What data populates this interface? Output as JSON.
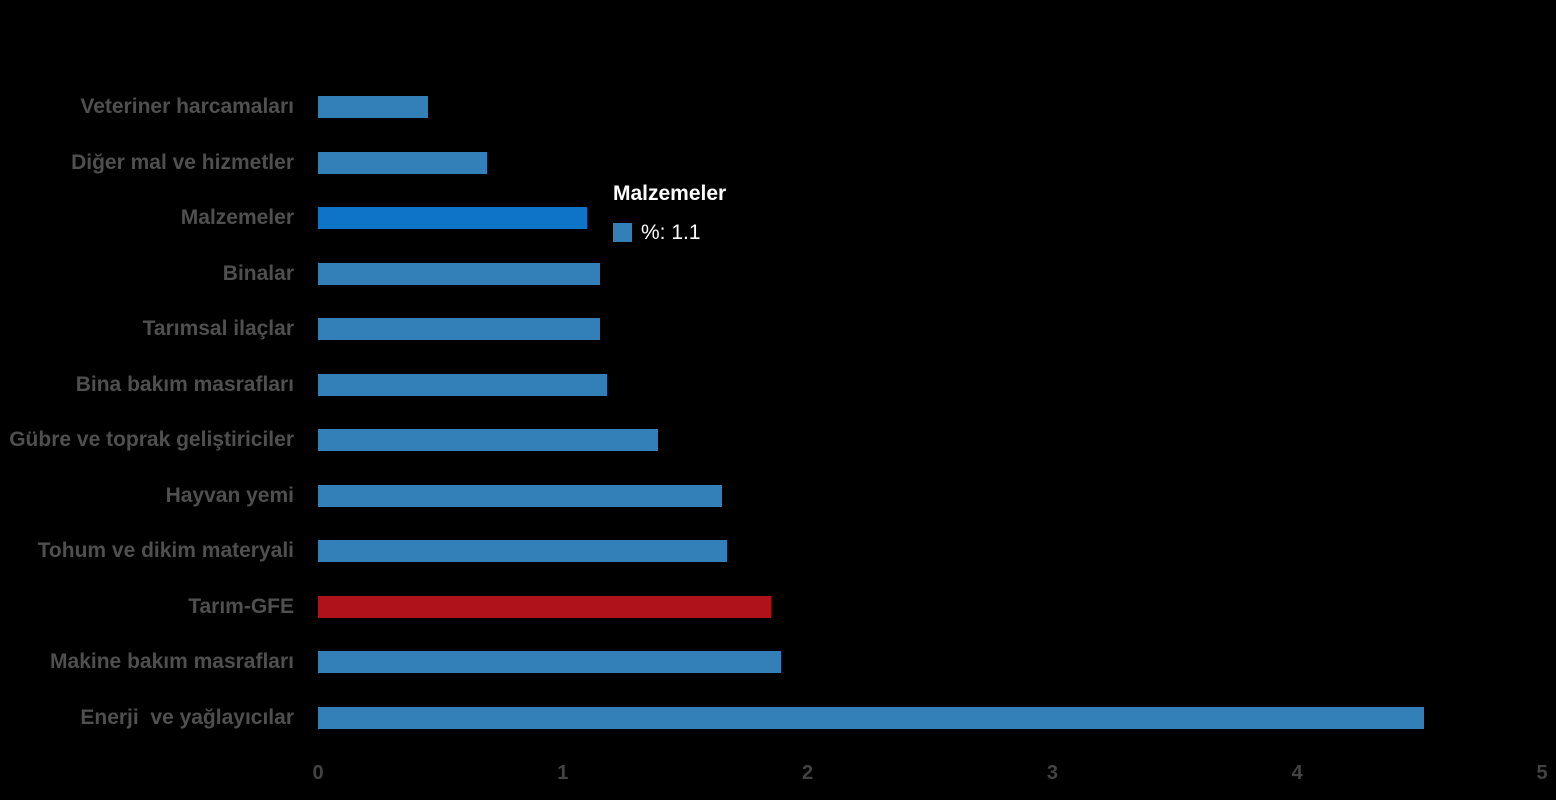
{
  "chart_data": {
    "type": "bar",
    "orientation": "horizontal",
    "title": "",
    "xlabel": "",
    "ylabel": "",
    "unit": "%",
    "xlim": [
      0,
      5
    ],
    "x_ticks": [
      "0",
      "1",
      "2",
      "3",
      "4",
      "5"
    ],
    "grid": false,
    "legend": false,
    "categories": [
      "Veteriner harcamaları",
      "Diğer mal ve hizmetler",
      "Malzemeler",
      "Binalar",
      "Tarımsal ilaçlar",
      "Bina bakım masrafları",
      "Gübre ve toprak geliştiriciler",
      "Hayvan yemi",
      "Tohum ve dikim materyali",
      "Tarım-GFE",
      "Makine bakım masrafları",
      "Enerji  ve yağlayıcılar"
    ],
    "values": [
      0.45,
      0.69,
      1.1,
      1.15,
      1.15,
      1.18,
      1.39,
      1.65,
      1.67,
      1.85,
      1.89,
      4.52
    ],
    "bar_states": [
      "default",
      "default",
      "hover",
      "default",
      "default",
      "default",
      "default",
      "default",
      "default",
      "emphasis",
      "default",
      "default"
    ],
    "hovered_category": "Malzemeler",
    "emphasis_category": "Tarım-GFE"
  },
  "tooltip": {
    "title": "Malzemeler",
    "text": "%: 1.1"
  },
  "colors": {
    "background": "#000000",
    "bar_default": "#3380B9",
    "bar_hover": "#0E74C8",
    "bar_emphasis": "#AF1319",
    "tooltip_marker": "#3380B9",
    "category_label": "#4f4f4f",
    "tick_label": "#434343",
    "tooltip_text": "#ffffff"
  }
}
